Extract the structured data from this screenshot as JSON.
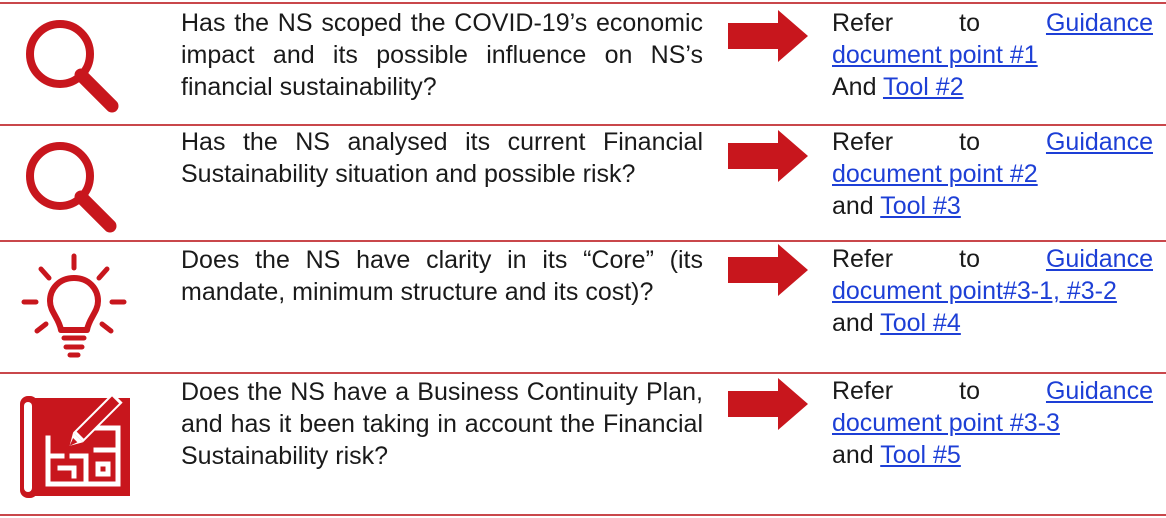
{
  "colors": {
    "accent_red": "#c8161d",
    "rule_red": "#c9474b",
    "link_blue": "#1d3fd6"
  },
  "rows": [
    {
      "icon": "magnifier-icon",
      "question": "Has the NS scoped the COVID-19’s economic impact and its possible influence on NS’s financial sustainability?",
      "refer": "Refer",
      "to": "to",
      "link1a": "Guidance",
      "link1b": "document point #1",
      "conj": "And",
      "tool": "Tool #2"
    },
    {
      "icon": "magnifier-icon",
      "question": "Has the NS analysed its current Financial Sustainability situation and possible risk?",
      "refer": "Refer",
      "to": "to",
      "link1a": "Guidance",
      "link1b": "document point #2",
      "conj": "and",
      "tool": "Tool #3"
    },
    {
      "icon": "lightbulb-icon",
      "question": "Does the NS have clarity in its “Core” (its mandate, minimum structure and its cost)?",
      "refer": "Refer",
      "to": "to",
      "link1a": "Guidance",
      "link1b": "document point#3-1, #3-2",
      "conj": "and",
      "tool": "Tool #4"
    },
    {
      "icon": "blueprint-icon",
      "question": "Does the NS have a Business Continuity Plan, and has it been taking in account the Financial Sustainability risk?",
      "refer": "Refer",
      "to": "to",
      "link1a": "Guidance",
      "link1b": "document point #3-3",
      "conj": "and",
      "tool": "Tool #5"
    }
  ]
}
